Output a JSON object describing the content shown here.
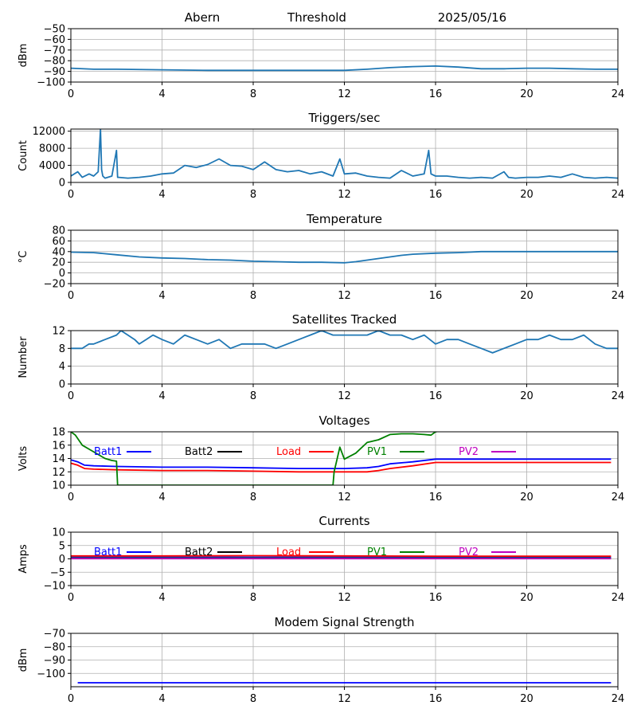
{
  "header": {
    "station": "Abern",
    "label": "Threshold",
    "date": "2025/05/16"
  },
  "chart_data": [
    {
      "type": "line",
      "title": "",
      "xlabel": "",
      "ylabel": "dBm",
      "xlim": [
        0,
        24
      ],
      "ylim": [
        -100,
        -50
      ],
      "xticks": [
        0,
        4,
        8,
        12,
        16,
        20,
        24
      ],
      "yticks": [
        -100,
        -90,
        -80,
        -70,
        -60,
        -50
      ],
      "grid": true,
      "series": [
        {
          "color": "#1f77b4",
          "x": [
            0,
            1,
            2,
            4,
            6,
            8,
            10,
            12,
            13,
            14,
            15,
            16,
            17,
            18,
            19,
            20,
            21,
            22,
            23,
            24
          ],
          "y": [
            -87,
            -88,
            -88,
            -88.5,
            -89,
            -89,
            -89,
            -89,
            -88,
            -86.5,
            -85.5,
            -85,
            -86,
            -87.5,
            -87.5,
            -87,
            -87,
            -87.5,
            -88,
            -88
          ]
        }
      ]
    },
    {
      "type": "line",
      "title": "Triggers/sec",
      "xlabel": "",
      "ylabel": "Count",
      "xlim": [
        0,
        24
      ],
      "ylim": [
        0,
        12500
      ],
      "xticks": [
        0,
        4,
        8,
        12,
        16,
        20,
        24
      ],
      "yticks": [
        0,
        4000,
        8000,
        12000
      ],
      "grid": true,
      "series": [
        {
          "color": "#1f77b4",
          "x": [
            0,
            0.3,
            0.5,
            0.8,
            1.0,
            1.2,
            1.3,
            1.35,
            1.4,
            1.5,
            1.8,
            2.0,
            2.05,
            2.1,
            2.5,
            3.0,
            3.5,
            4.0,
            4.5,
            5.0,
            5.5,
            6.0,
            6.5,
            7.0,
            7.5,
            8.0,
            8.5,
            9.0,
            9.5,
            10.0,
            10.5,
            11.0,
            11.5,
            11.8,
            12.0,
            12.5,
            13.0,
            13.5,
            14.0,
            14.5,
            15.0,
            15.5,
            15.7,
            15.8,
            16.0,
            16.5,
            17.0,
            17.5,
            18.0,
            18.5,
            19.0,
            19.2,
            19.5,
            20.0,
            20.5,
            21.0,
            21.5,
            22.0,
            22.5,
            23.0,
            23.5,
            24.0
          ],
          "y": [
            1500,
            2500,
            1200,
            2000,
            1500,
            2500,
            12500,
            3000,
            1500,
            1000,
            1500,
            7500,
            1200,
            1200,
            1000,
            1200,
            1500,
            2000,
            2200,
            4000,
            3500,
            4200,
            5500,
            4000,
            3800,
            3000,
            4800,
            3000,
            2500,
            2800,
            2000,
            2500,
            1500,
            5500,
            2000,
            2200,
            1500,
            1200,
            1000,
            2800,
            1500,
            2000,
            7500,
            2000,
            1500,
            1500,
            1200,
            1000,
            1200,
            1000,
            2500,
            1200,
            1000,
            1200,
            1200,
            1500,
            1200,
            2000,
            1200,
            1000,
            1200,
            1000
          ]
        }
      ]
    },
    {
      "type": "line",
      "title": "Temperature",
      "xlabel": "",
      "ylabel": "°C",
      "xlim": [
        0,
        24
      ],
      "ylim": [
        -20,
        80
      ],
      "xticks": [
        0,
        4,
        8,
        12,
        16,
        20,
        24
      ],
      "yticks": [
        -20,
        0,
        20,
        40,
        60,
        80
      ],
      "grid": true,
      "series": [
        {
          "color": "#1f77b4",
          "x": [
            0,
            1,
            2,
            3,
            4,
            5,
            6,
            7,
            8,
            9,
            10,
            11,
            12,
            12.5,
            13,
            13.5,
            14,
            14.5,
            15,
            16,
            17,
            18,
            19,
            20,
            21,
            22,
            23,
            24
          ],
          "y": [
            39,
            38,
            34,
            30,
            28,
            27,
            25,
            24,
            22,
            21,
            20,
            20,
            19,
            21,
            24,
            27,
            30,
            33,
            35,
            37,
            38,
            40,
            40,
            40,
            40,
            40,
            40,
            40
          ]
        }
      ]
    },
    {
      "type": "line",
      "title": "Satellites Tracked",
      "xlabel": "",
      "ylabel": "Number",
      "xlim": [
        0,
        24
      ],
      "ylim": [
        0,
        12
      ],
      "xticks": [
        0,
        4,
        8,
        12,
        16,
        20,
        24
      ],
      "yticks": [
        0,
        4,
        8,
        12
      ],
      "grid": true,
      "series": [
        {
          "color": "#1f77b4",
          "x": [
            0,
            0.5,
            0.8,
            1.0,
            1.5,
            2.0,
            2.2,
            2.5,
            2.8,
            3.0,
            3.3,
            3.6,
            4.0,
            4.5,
            5.0,
            5.5,
            6.0,
            6.5,
            7.0,
            7.5,
            8.0,
            8.5,
            9.0,
            9.5,
            10.0,
            10.5,
            11.0,
            11.5,
            12.0,
            12.5,
            13.0,
            13.5,
            14.0,
            14.5,
            15.0,
            15.5,
            16.0,
            16.5,
            17.0,
            17.5,
            18.0,
            18.5,
            19.0,
            19.5,
            20.0,
            20.5,
            21.0,
            21.5,
            22.0,
            22.5,
            23.0,
            23.5,
            24.0
          ],
          "y": [
            8,
            8,
            9,
            9,
            10,
            11,
            12,
            11,
            10,
            9,
            10,
            11,
            10,
            9,
            11,
            10,
            9,
            10,
            8,
            9,
            9,
            9,
            8,
            9,
            10,
            11,
            12,
            11,
            11,
            11,
            11,
            12,
            11,
            11,
            10,
            11,
            9,
            10,
            10,
            9,
            8,
            7,
            8,
            9,
            10,
            10,
            11,
            10,
            10,
            11,
            9,
            8,
            8
          ]
        }
      ]
    },
    {
      "type": "line",
      "title": "Voltages",
      "xlabel": "",
      "ylabel": "Volts",
      "xlim": [
        0,
        24
      ],
      "ylim": [
        10,
        18
      ],
      "xticks": [
        0,
        4,
        8,
        12,
        16,
        20,
        24
      ],
      "yticks": [
        10,
        12,
        14,
        16,
        18
      ],
      "grid": true,
      "legend": "inside-top",
      "series": [
        {
          "name": "Batt1",
          "color": "#0000ff",
          "x": [
            0,
            0.3,
            0.6,
            1,
            2,
            4,
            6,
            8,
            10,
            12,
            13,
            13.5,
            14,
            15,
            16,
            18,
            20,
            22,
            23.7
          ],
          "y": [
            13.8,
            13.5,
            13.0,
            12.9,
            12.8,
            12.7,
            12.7,
            12.6,
            12.5,
            12.5,
            12.6,
            12.8,
            13.2,
            13.5,
            13.9,
            13.9,
            13.9,
            13.9,
            13.9
          ]
        },
        {
          "name": "Batt2",
          "color": "#000000",
          "x": [],
          "y": []
        },
        {
          "name": "Load",
          "color": "#ff0000",
          "x": [
            0,
            0.3,
            0.6,
            1,
            2,
            4,
            6,
            8,
            10,
            12,
            13,
            13.5,
            14,
            15,
            16,
            18,
            20,
            22,
            23.7
          ],
          "y": [
            13.3,
            13.0,
            12.5,
            12.4,
            12.3,
            12.2,
            12.2,
            12.1,
            12.0,
            12.0,
            12.0,
            12.2,
            12.5,
            12.9,
            13.4,
            13.4,
            13.4,
            13.4,
            13.4
          ]
        },
        {
          "name": "PV1",
          "color": "#008000",
          "x": [
            0,
            0.2,
            0.5,
            1.0,
            1.5,
            1.8,
            2.0,
            2.05,
            11.5,
            11.55,
            11.8,
            12.0,
            12.5,
            13.0,
            13.5,
            14.0,
            14.5,
            15.0,
            15.5,
            15.8,
            16.0,
            16.05
          ],
          "y": [
            18,
            17.5,
            16.0,
            15.0,
            14.0,
            13.7,
            13.6,
            10,
            10,
            12.0,
            15.7,
            13.9,
            14.8,
            16.4,
            16.8,
            17.6,
            17.7,
            17.7,
            17.6,
            17.5,
            18.0,
            18
          ]
        },
        {
          "name": "PV2",
          "color": "#bf00bf",
          "x": [],
          "y": []
        }
      ]
    },
    {
      "type": "line",
      "title": "Currents",
      "xlabel": "",
      "ylabel": "Amps",
      "xlim": [
        0,
        24
      ],
      "ylim": [
        -10,
        10
      ],
      "xticks": [
        0,
        4,
        8,
        12,
        16,
        20,
        24
      ],
      "yticks": [
        -10,
        -5,
        0,
        5,
        10
      ],
      "grid": true,
      "legend": "inside-top",
      "series": [
        {
          "name": "Batt1",
          "color": "#0000ff",
          "x": [
            0,
            23.7
          ],
          "y": [
            0.6,
            0.6
          ]
        },
        {
          "name": "Batt2",
          "color": "#000000",
          "x": [],
          "y": []
        },
        {
          "name": "Load",
          "color": "#ff0000",
          "x": [
            0,
            4,
            8,
            12,
            16,
            20,
            23.7
          ],
          "y": [
            1.1,
            1.1,
            1.2,
            1.1,
            1.0,
            1.0,
            1.0
          ]
        },
        {
          "name": "PV1",
          "color": "#008000",
          "x": [
            0,
            23.7
          ],
          "y": [
            0.3,
            0.3
          ]
        },
        {
          "name": "PV2",
          "color": "#bf00bf",
          "x": [
            0,
            23.7
          ],
          "y": [
            0.1,
            0.1
          ]
        }
      ]
    },
    {
      "type": "line",
      "title": "Modem Signal Strength",
      "xlabel": "",
      "ylabel": "dBm",
      "xlim": [
        0,
        24
      ],
      "ylim": [
        -110,
        -70
      ],
      "xticks": [
        0,
        4,
        8,
        12,
        16,
        20,
        24
      ],
      "yticks": [
        -100,
        -90,
        -80,
        -70
      ],
      "grid": true,
      "series": [
        {
          "color": "#0000ff",
          "x": [
            0.3,
            23.7
          ],
          "y": [
            -107,
            -107
          ]
        }
      ]
    }
  ]
}
